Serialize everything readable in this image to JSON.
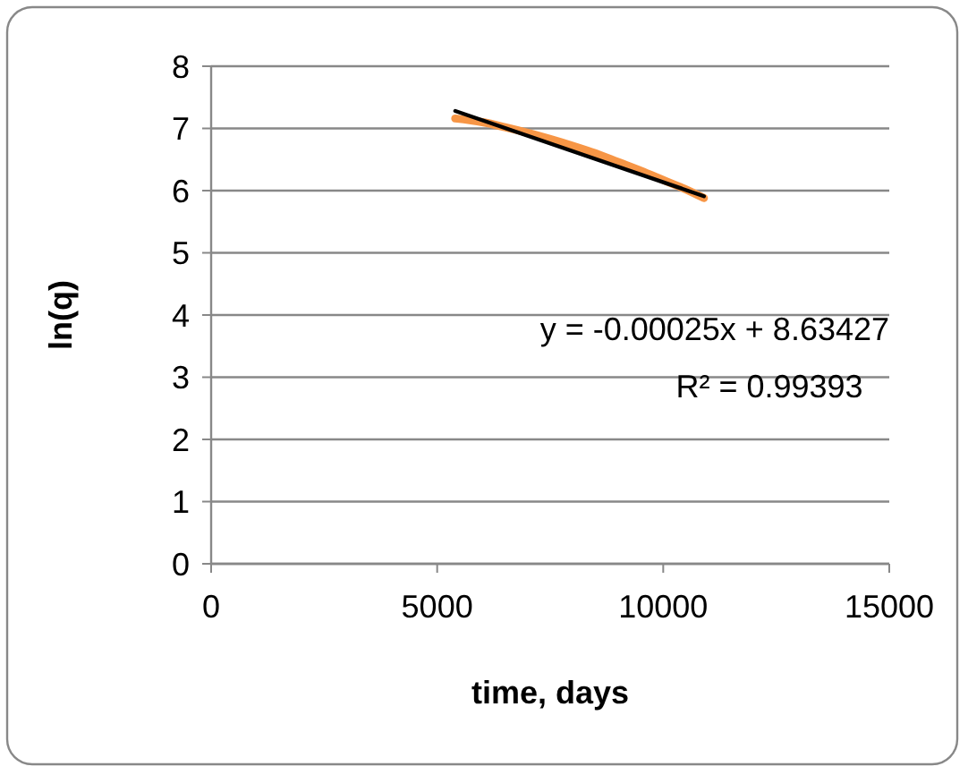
{
  "chart_data": {
    "type": "line",
    "xlabel": "time, days",
    "ylabel": "ln(q)",
    "xlim": [
      0,
      15000
    ],
    "xticks": [
      0,
      5000,
      10000,
      15000
    ],
    "ylim": [
      0,
      8
    ],
    "yticks": [
      0,
      1,
      2,
      3,
      4,
      5,
      6,
      7,
      8
    ],
    "grid": "y",
    "marker": "none",
    "line_style": "solid",
    "series": [
      {
        "color": "#f79646",
        "x": [
          5400,
          6000,
          6500,
          7000,
          7500,
          8000,
          8500,
          9000,
          9500,
          10000,
          10500,
          10900
        ],
        "values": [
          7.16,
          7.1,
          7.02,
          6.93,
          6.83,
          6.72,
          6.6,
          6.46,
          6.32,
          6.17,
          6.02,
          5.88
        ]
      },
      {
        "type": "line",
        "color": "#000000",
        "x": [
          5400,
          10900
        ],
        "values": [
          7.28,
          5.91
        ]
      }
    ],
    "annotations": [
      "y = -0.00025x + 8.63427",
      "R² = 0.99393"
    ]
  }
}
